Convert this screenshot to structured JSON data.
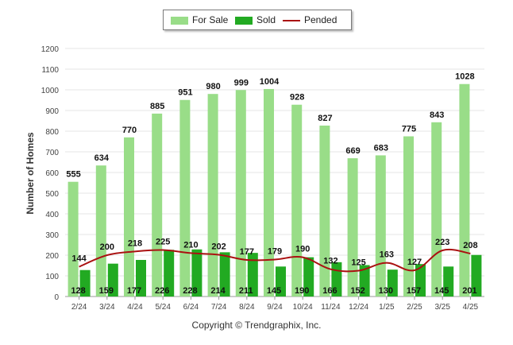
{
  "chart_data": {
    "type": "bar",
    "ylabel": "Number of Homes",
    "xlabel": "",
    "ylim": [
      0,
      1200
    ],
    "yticks": [
      0,
      100,
      200,
      300,
      400,
      500,
      600,
      700,
      800,
      900,
      1000,
      1100,
      1200
    ],
    "grid": true,
    "legend_position": "top-center",
    "categories": [
      "2/24",
      "3/24",
      "4/24",
      "5/24",
      "6/24",
      "7/24",
      "8/24",
      "9/24",
      "10/24",
      "11/24",
      "12/24",
      "1/25",
      "2/25",
      "3/25",
      "4/25"
    ],
    "series": [
      {
        "name": "For Sale",
        "kind": "bar",
        "color": "#99dd88",
        "values": [
          555,
          634,
          770,
          885,
          951,
          980,
          999,
          1004,
          928,
          827,
          669,
          683,
          775,
          843,
          1028
        ]
      },
      {
        "name": "Sold",
        "kind": "bar",
        "color": "#22aa22",
        "values": [
          128,
          159,
          177,
          226,
          228,
          214,
          211,
          145,
          190,
          166,
          152,
          130,
          157,
          145,
          201
        ]
      },
      {
        "name": "Pended",
        "kind": "line",
        "color": "#aa1111",
        "values": [
          144,
          200,
          218,
          225,
          210,
          202,
          177,
          179,
          190,
          132,
          125,
          163,
          127,
          223,
          208
        ]
      }
    ]
  },
  "legend": {
    "for_sale": "For Sale",
    "sold": "Sold",
    "pended": "Pended"
  },
  "footer": {
    "copyright": "Copyright © Trendgraphix, Inc."
  }
}
